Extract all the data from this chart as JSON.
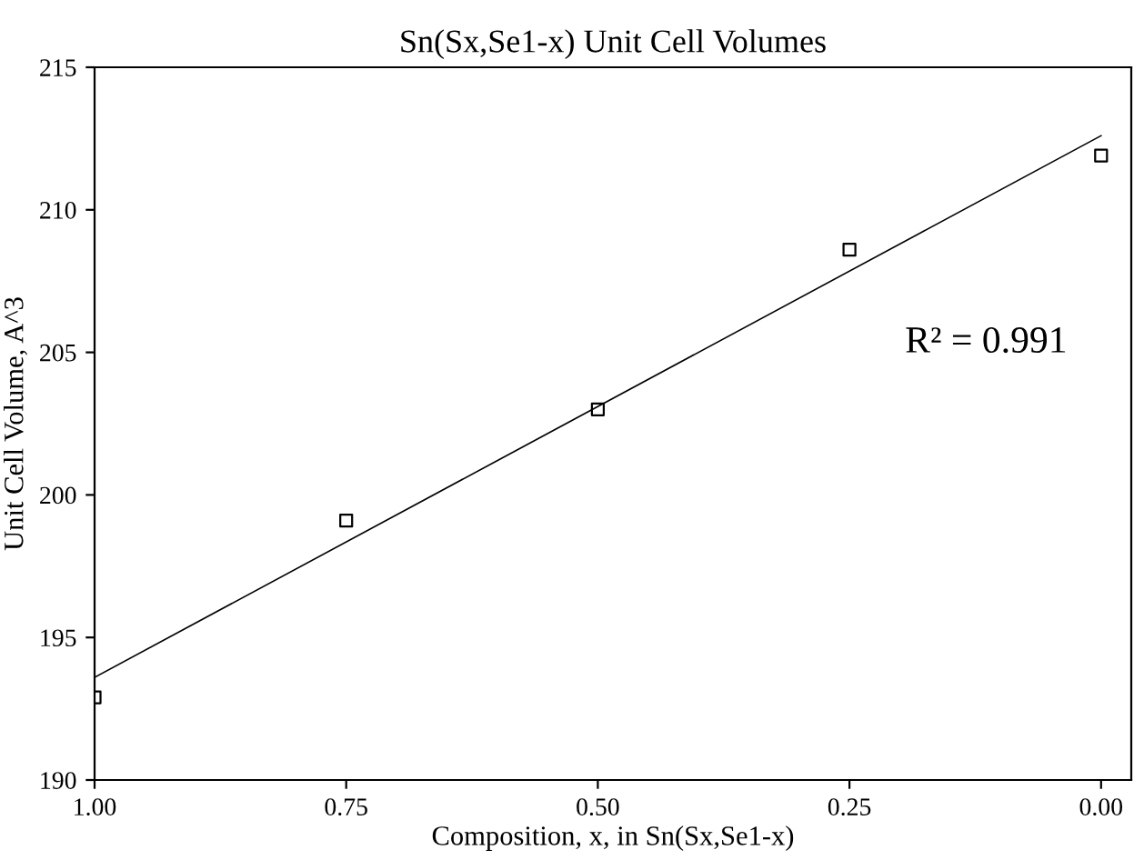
{
  "chart_data": {
    "type": "scatter",
    "title": "Sn(Sx,Se1-x) Unit Cell Volumes",
    "xlabel": "Composition, x, in Sn(Sx,Se1-x)",
    "ylabel": "Unit Cell Volume, A^3",
    "x": [
      1.0,
      0.75,
      0.5,
      0.25,
      0.0
    ],
    "series": [
      {
        "marker": "square",
        "color": "#000000",
        "values": [
          192.9,
          199.1,
          203.0,
          208.6,
          211.9
        ]
      },
      {
        "type": "line",
        "marker": "none",
        "color": "#000000",
        "x": [
          1.0,
          0.0
        ],
        "values": [
          193.6,
          212.6
        ]
      }
    ],
    "xlim": [
      1.0,
      -0.03
    ],
    "xticks": [
      {
        "value": 1.0,
        "label": "1.00"
      },
      {
        "value": 0.75,
        "label": "0.75"
      },
      {
        "value": 0.5,
        "label": "0.50"
      },
      {
        "value": 0.25,
        "label": "0.25"
      },
      {
        "value": 0.0,
        "label": "0.00"
      }
    ],
    "ylim": [
      190,
      215
    ],
    "yticks": [
      190,
      195,
      200,
      205,
      210,
      215
    ],
    "annotations": [
      "R² = 0.991"
    ],
    "grid": false,
    "legend": false
  }
}
